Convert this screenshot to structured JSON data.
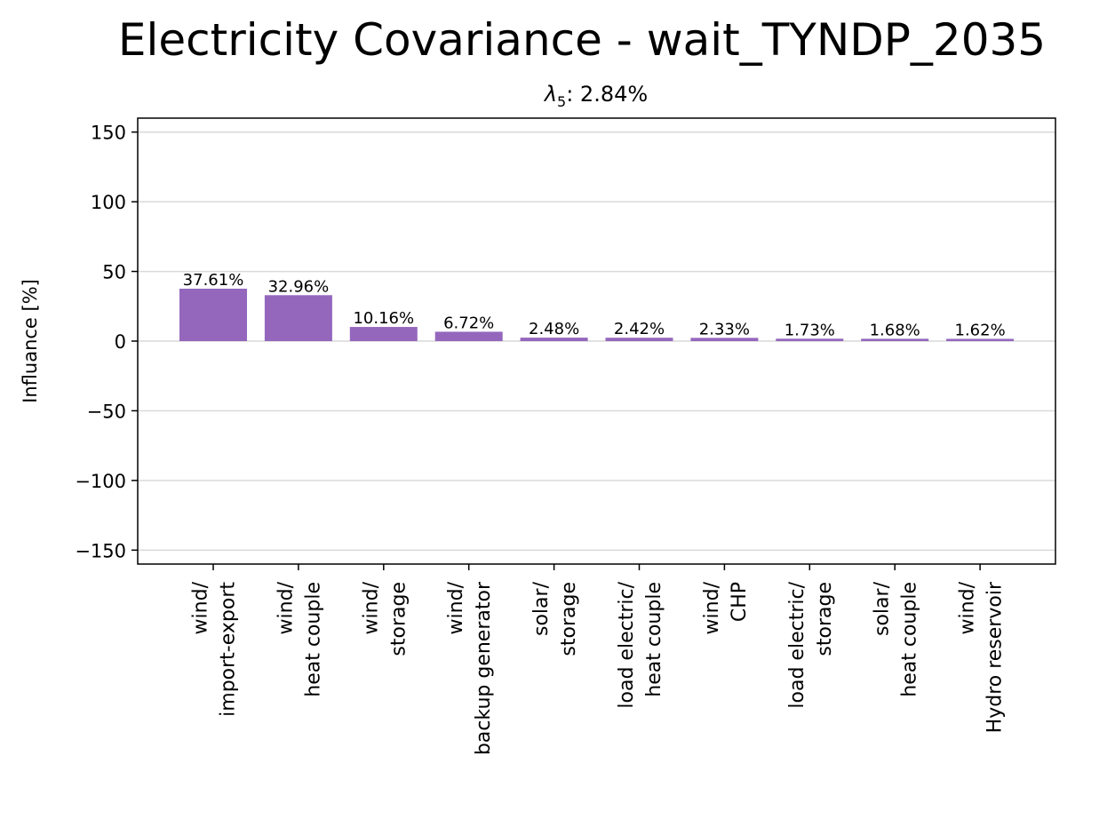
{
  "chart_data": {
    "type": "bar",
    "title": "Electricity Covariance - wait_TYNDP_2035",
    "subtitle": {
      "symbol": "λ",
      "subscript": "5",
      "text": ": 2.84%"
    },
    "xlabel": "",
    "ylabel": "Influance [%]",
    "ylim": [
      -160,
      160
    ],
    "yticks": [
      -150,
      -100,
      -50,
      0,
      50,
      100,
      150
    ],
    "ytick_labels": [
      "−150",
      "−100",
      "−50",
      "0",
      "50",
      "100",
      "150"
    ],
    "grid": "horizontal",
    "bar_color": "#9467bd",
    "categories": [
      [
        "wind/",
        "import-export"
      ],
      [
        "wind/",
        "heat couple"
      ],
      [
        "wind/",
        "storage"
      ],
      [
        "wind/",
        "backup generator"
      ],
      [
        "solar/",
        "storage"
      ],
      [
        "load electric/",
        "heat couple"
      ],
      [
        "wind/",
        "CHP"
      ],
      [
        "load electric/",
        "storage"
      ],
      [
        "solar/",
        "heat couple"
      ],
      [
        "wind/",
        "Hydro reservoir"
      ]
    ],
    "values": [
      37.61,
      32.96,
      10.16,
      6.72,
      2.48,
      2.42,
      2.33,
      1.73,
      1.68,
      1.62
    ],
    "data_labels": [
      "37.61%",
      "32.96%",
      "10.16%",
      "6.72%",
      "2.48%",
      "2.42%",
      "2.33%",
      "1.73%",
      "1.68%",
      "1.62%"
    ]
  }
}
